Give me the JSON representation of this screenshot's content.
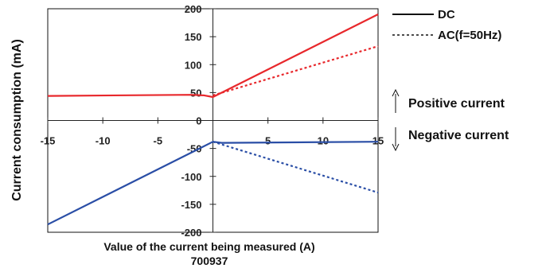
{
  "chart_data": {
    "type": "line",
    "xlabel": "Value of the current being measured (A)",
    "ylabel": "Current consumption (mA)",
    "caption": "700937",
    "xlim": [
      -15,
      15
    ],
    "ylim": [
      -200,
      200
    ],
    "x_ticks": [
      -15,
      -10,
      -5,
      5,
      10,
      15
    ],
    "y_ticks": [
      200,
      150,
      100,
      50,
      0,
      -50,
      -100,
      -150,
      -200
    ],
    "grid": false,
    "legend_position": "top-right",
    "legend": [
      {
        "label": "DC",
        "style": "solid"
      },
      {
        "label": "AC(f=50Hz)",
        "style": "dashed"
      }
    ],
    "annotations": [
      {
        "text": "Positive current",
        "direction": "up"
      },
      {
        "text": "Negative current",
        "direction": "down"
      }
    ],
    "series": [
      {
        "key": "pos-dc",
        "style": "solid",
        "color": "#e8282c",
        "points": [
          [
            -15,
            44
          ],
          [
            -2,
            46
          ],
          [
            -0.8,
            45
          ],
          [
            0,
            42
          ],
          [
            15,
            190
          ]
        ]
      },
      {
        "key": "pos-ac",
        "style": "dashed",
        "color": "#e8282c",
        "points": [
          [
            0,
            45
          ],
          [
            15,
            133
          ]
        ]
      },
      {
        "key": "neg-dc",
        "style": "solid",
        "color": "#2a4ea6",
        "points": [
          [
            -15,
            -186
          ],
          [
            0,
            -38
          ],
          [
            0.8,
            -40
          ],
          [
            15,
            -38
          ]
        ]
      },
      {
        "key": "neg-ac",
        "style": "dashed",
        "color": "#2a4ea6",
        "points": [
          [
            0,
            -38
          ],
          [
            15,
            -129
          ]
        ]
      }
    ]
  }
}
